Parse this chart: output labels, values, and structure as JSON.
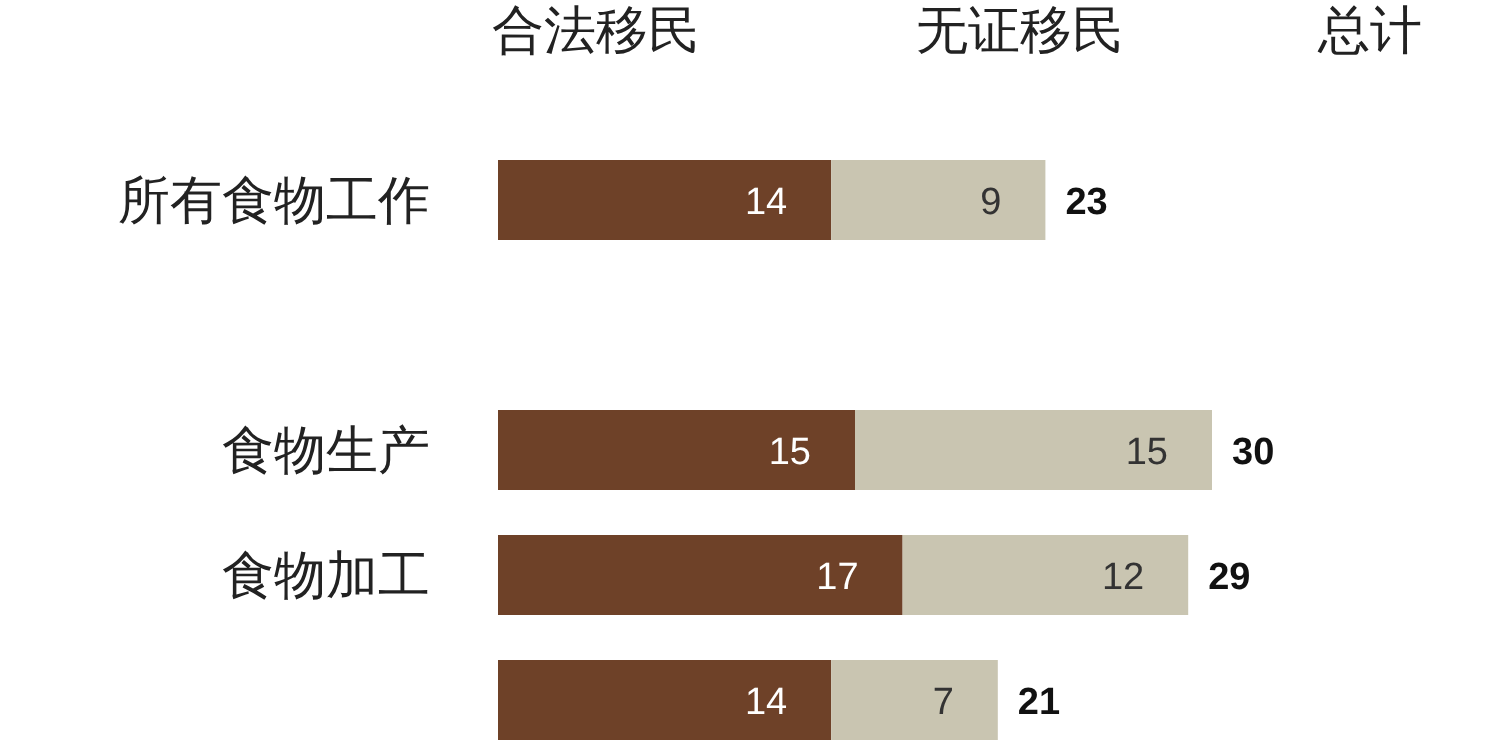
{
  "chart_data": {
    "type": "bar",
    "orientation": "horizontal",
    "stacked": true,
    "legend": "top",
    "data_labels": true,
    "categories": [
      "所有食物工作",
      null,
      "食物生产",
      "食物加工",
      null
    ],
    "series": [
      {
        "name": "合法移民",
        "color": "#6e4128",
        "values": [
          14,
          null,
          15,
          17,
          14
        ]
      },
      {
        "name": "无证移民",
        "color": "#c9c5b1",
        "values": [
          9,
          null,
          15,
          12,
          7
        ]
      }
    ],
    "totals": [
      "23",
      null,
      "30",
      "29",
      "21"
    ],
    "annotations": [
      "总计"
    ]
  }
}
